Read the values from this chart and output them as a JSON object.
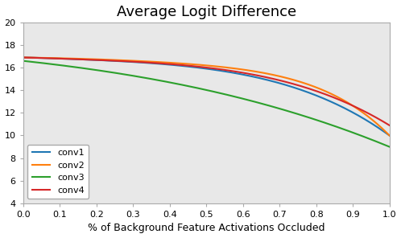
{
  "title": "Average Logit Difference",
  "xlabel": "% of Background Feature Activations Occluded",
  "ylabel": "",
  "xlim": [
    0.0,
    1.0
  ],
  "ylim": [
    4,
    20
  ],
  "yticks": [
    4,
    6,
    8,
    10,
    12,
    14,
    16,
    18,
    20
  ],
  "xticks": [
    0.0,
    0.1,
    0.2,
    0.3,
    0.4,
    0.5,
    0.6,
    0.7,
    0.8,
    0.9,
    1.0
  ],
  "conv1_color": "#1f77b4",
  "conv2_color": "#ff7f0e",
  "conv3_color": "#2ca02c",
  "conv4_color": "#d62728",
  "legend_loc": "lower left",
  "axes_facecolor": "#e8e8e8",
  "title_fontsize": 13,
  "tick_fontsize": 8,
  "xlabel_fontsize": 9
}
